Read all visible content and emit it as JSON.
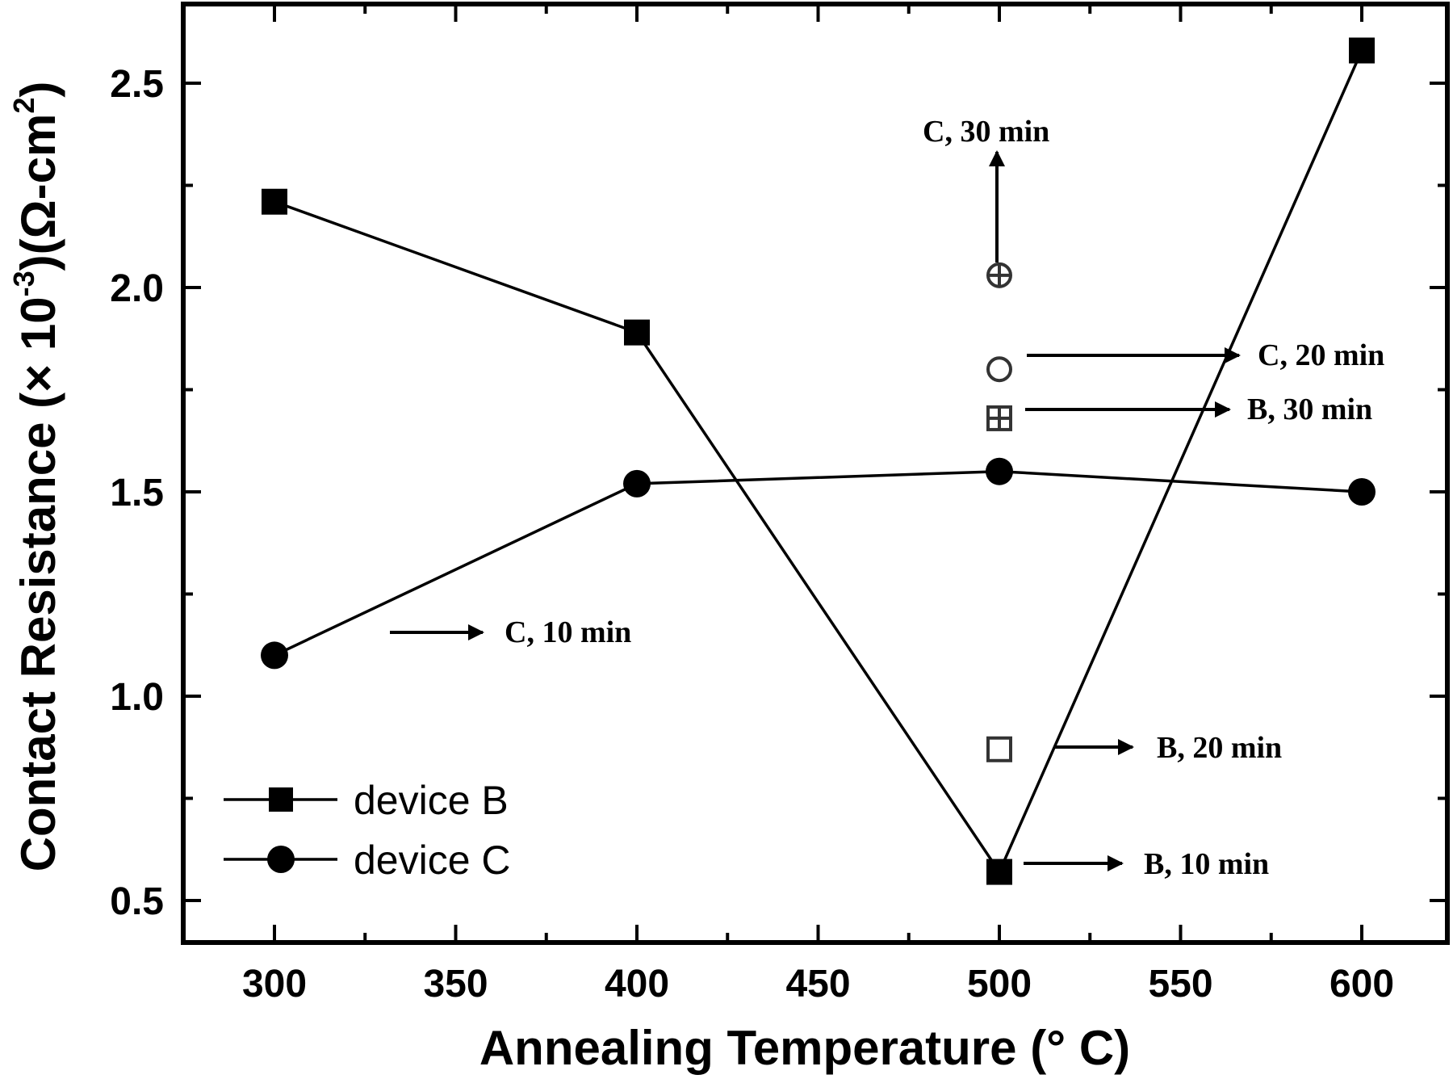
{
  "chart_data": {
    "type": "line",
    "title": "",
    "xlabel": "Annealing Temperature (°  C)",
    "ylabel": "Contact Resistance (× 10⁻³)(Ω-cm²)",
    "x": [
      300,
      400,
      500,
      600
    ],
    "xlim": [
      275,
      625
    ],
    "ylim": [
      0.4,
      2.7
    ],
    "xticks": [
      300,
      350,
      400,
      450,
      500,
      550,
      600
    ],
    "xtick_labels": [
      "300",
      "350",
      "400",
      "450",
      "500",
      "550",
      "600"
    ],
    "yticks": [
      0.5,
      1.0,
      1.5,
      2.0,
      2.5
    ],
    "ytick_labels": [
      "0.5",
      "1.0",
      "1.5",
      "2.0",
      "2.5"
    ],
    "grid": false,
    "legend_position": "lower left",
    "series": [
      {
        "name": "device B",
        "marker": "filled-square",
        "values": [
          2.21,
          1.89,
          0.57,
          2.58
        ]
      },
      {
        "name": "device C",
        "marker": "filled-circle",
        "values": [
          1.1,
          1.52,
          1.55,
          1.5
        ]
      }
    ],
    "extra_points": [
      {
        "x": 500,
        "y": 2.03,
        "marker": "crossed-circle",
        "label": "C, 30 min"
      },
      {
        "x": 500,
        "y": 1.8,
        "marker": "open-circle",
        "label": "C, 20 min"
      },
      {
        "x": 500,
        "y": 1.68,
        "marker": "crossed-square",
        "label": "B, 30 min"
      },
      {
        "x": 500,
        "y": 0.87,
        "marker": "open-square",
        "label": "B, 20 min"
      }
    ],
    "annotations": [
      {
        "text": "C, 10 min",
        "points_to": "device C @ 300"
      },
      {
        "text": "B, 10 min",
        "points_to": "device B @ 500"
      },
      {
        "text": "B, 20 min",
        "points_to": "open square @ 500"
      },
      {
        "text": "B, 30 min",
        "points_to": "crossed square @ 500"
      },
      {
        "text": "C, 20 min",
        "points_to": "open circle @ 500"
      },
      {
        "text": "C, 30 min",
        "points_to": "crossed circle @ 500"
      }
    ]
  },
  "legend": {
    "items": [
      {
        "label": "device B"
      },
      {
        "label": "device C"
      }
    ]
  },
  "axes": {
    "xlabel": "Annealing Temperature (°  C)",
    "ylabel_main": "Contact Resistance (× 10",
    "ylabel_exp": "-3",
    "ylabel_unit": ")(Ω-cm",
    "ylabel_unit_exp": "2",
    "ylabel_close": ")"
  },
  "annotations": {
    "c10": "C, 10 min",
    "b10": "B, 10 min",
    "b20": "B, 20 min",
    "b30": "B, 30 min",
    "c20": "C, 20 min",
    "c30": "C, 30 min"
  }
}
